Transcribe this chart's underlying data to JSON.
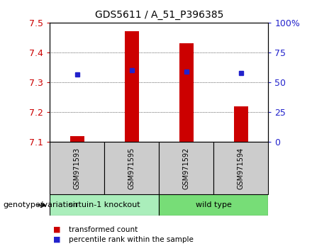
{
  "title": "GDS5611 / A_51_P396385",
  "samples": [
    "GSM971593",
    "GSM971595",
    "GSM971592",
    "GSM971594"
  ],
  "bar_values": [
    7.12,
    7.47,
    7.43,
    7.22
  ],
  "blue_values": [
    7.325,
    7.34,
    7.335,
    7.33
  ],
  "baseline": 7.1,
  "ylim": [
    7.1,
    7.5
  ],
  "yticks_left": [
    7.1,
    7.2,
    7.3,
    7.4,
    7.5
  ],
  "yticks_right": [
    0,
    25,
    50,
    75,
    100
  ],
  "bar_color": "#cc0000",
  "blue_color": "#2222cc",
  "group1_label": "sirtuin-1 knockout",
  "group2_label": "wild type",
  "group1_indices": [
    0,
    1
  ],
  "group2_indices": [
    2,
    3
  ],
  "group1_bg": "#aaeebb",
  "group2_bg": "#77dd77",
  "sample_bg": "#cccccc",
  "legend_bar_label": "transformed count",
  "legend_blue_label": "percentile rank within the sample",
  "genotype_label": "genotype/variation",
  "bar_width": 0.25
}
